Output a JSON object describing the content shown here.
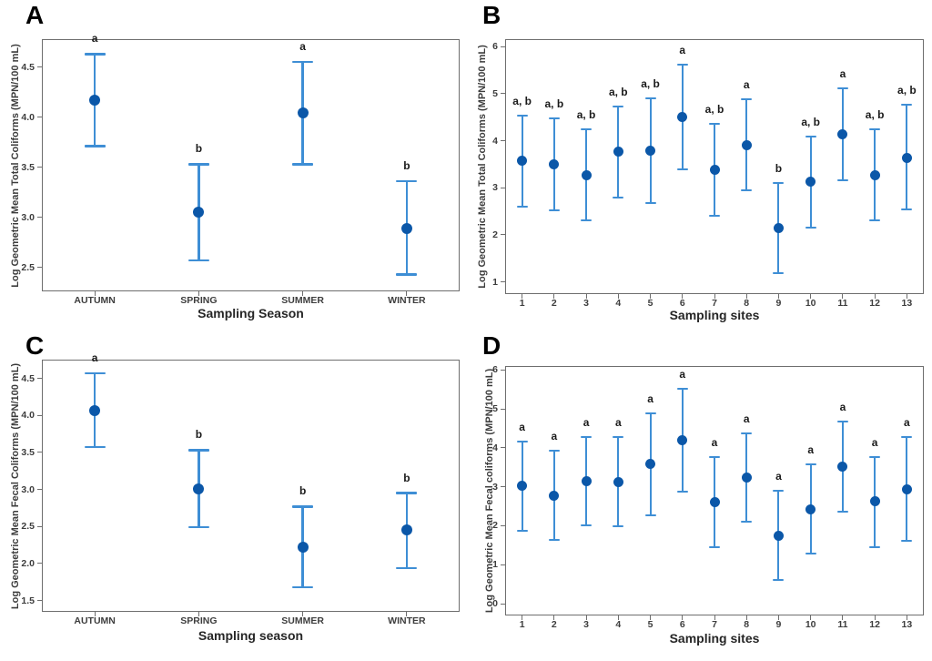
{
  "figure": {
    "description": "Four-panel interval plot figure with mean markers, 95% interval error bars and significance letters",
    "panel_letters": [
      "A",
      "B",
      "C",
      "D"
    ]
  },
  "colors": {
    "marker": "#0b57a8",
    "error_bar": "#3e8ed5",
    "frame": "#6e6e6e",
    "tick_text": "#3d3d3d",
    "axis_title_text": "#262626",
    "sig_letter_text": "#1a1a1a",
    "panel_letter_text": "#000000",
    "background": "#ffffff"
  },
  "chart_data": [
    {
      "panel": "A",
      "type": "interval",
      "ylabel": "Log Geometric Mean Total Coliforms (MPN/100 mL)",
      "xlabel": "Sampling Season",
      "ylim": [
        2.27,
        4.77
      ],
      "yticks": [
        "4.5",
        "4.0",
        "3.5",
        "3.0",
        "2.5"
      ],
      "grid": false,
      "legend": false,
      "categories": [
        "AUTUMN",
        "SPRING",
        "SUMMER",
        "WINTER"
      ],
      "points": [
        {
          "category": "AUTUMN",
          "mean": 4.17,
          "lower": 3.71,
          "upper": 4.63,
          "letter": "a"
        },
        {
          "category": "SPRING",
          "mean": 3.05,
          "lower": 2.57,
          "upper": 3.53,
          "letter": "b"
        },
        {
          "category": "SUMMER",
          "mean": 4.04,
          "lower": 3.53,
          "upper": 4.55,
          "letter": "a"
        },
        {
          "category": "WINTER",
          "mean": 2.89,
          "lower": 2.43,
          "upper": 3.36,
          "letter": "b"
        }
      ]
    },
    {
      "panel": "B",
      "type": "interval",
      "ylabel": "Log Geometric Mean Total Coliforms (MPN/100 mL)",
      "xlabel": "Sampling sites",
      "ylim": [
        0.76,
        6.14
      ],
      "yticks": [
        "6",
        "5",
        "4",
        "3",
        "2",
        "1"
      ],
      "grid": false,
      "legend": false,
      "categories": [
        "1",
        "2",
        "3",
        "4",
        "5",
        "6",
        "7",
        "8",
        "9",
        "10",
        "11",
        "12",
        "13"
      ],
      "points": [
        {
          "category": "1",
          "mean": 3.58,
          "lower": 2.6,
          "upper": 4.54,
          "letter": "a, b"
        },
        {
          "category": "2",
          "mean": 3.49,
          "lower": 2.53,
          "upper": 4.47,
          "letter": "a, b"
        },
        {
          "category": "3",
          "mean": 3.27,
          "lower": 2.31,
          "upper": 4.25,
          "letter": "a, b"
        },
        {
          "category": "4",
          "mean": 3.77,
          "lower": 2.79,
          "upper": 4.73,
          "letter": "a, b"
        },
        {
          "category": "5",
          "mean": 3.79,
          "lower": 2.67,
          "upper": 4.9,
          "letter": "a, b"
        },
        {
          "category": "6",
          "mean": 4.51,
          "lower": 3.39,
          "upper": 5.62,
          "letter": "a"
        },
        {
          "category": "7",
          "mean": 3.39,
          "lower": 2.41,
          "upper": 4.35,
          "letter": "a, b"
        },
        {
          "category": "8",
          "mean": 3.91,
          "lower": 2.95,
          "upper": 4.89,
          "letter": "a"
        },
        {
          "category": "9",
          "mean": 2.14,
          "lower": 1.18,
          "upper": 3.11,
          "letter": "b"
        },
        {
          "category": "10",
          "mean": 3.13,
          "lower": 2.16,
          "upper": 4.09,
          "letter": "a, b"
        },
        {
          "category": "11",
          "mean": 4.13,
          "lower": 3.16,
          "upper": 5.11,
          "letter": "a"
        },
        {
          "category": "12",
          "mean": 3.27,
          "lower": 2.31,
          "upper": 4.25,
          "letter": "a, b"
        },
        {
          "category": "13",
          "mean": 3.64,
          "lower": 2.54,
          "upper": 4.77,
          "letter": "a, b"
        }
      ]
    },
    {
      "panel": "C",
      "type": "interval",
      "ylabel": "Log Geometric Mean Fecal Coliforms (MPN/100 mL)",
      "xlabel": "Sampling season",
      "ylim": [
        1.36,
        4.74
      ],
      "yticks": [
        "4.5",
        "4.0",
        "3.5",
        "3.0",
        "2.5",
        "2.0",
        "1.5"
      ],
      "grid": false,
      "legend": false,
      "categories": [
        "AUTUMN",
        "SPRING",
        "SUMMER",
        "WINTER"
      ],
      "points": [
        {
          "category": "AUTUMN",
          "mean": 4.06,
          "lower": 3.57,
          "upper": 4.57,
          "letter": "a"
        },
        {
          "category": "SPRING",
          "mean": 3.01,
          "lower": 2.49,
          "upper": 3.53,
          "letter": "b"
        },
        {
          "category": "SUMMER",
          "mean": 2.22,
          "lower": 1.68,
          "upper": 2.77,
          "letter": "b"
        },
        {
          "category": "WINTER",
          "mean": 2.45,
          "lower": 1.94,
          "upper": 2.95,
          "letter": "b"
        }
      ]
    },
    {
      "panel": "D",
      "type": "interval",
      "ylabel": "Log Geometric Mean Fecal coliforms (MPN/100 mL)",
      "xlabel": "Sampling sites",
      "ylim": [
        -0.28,
        6.08
      ],
      "yticks": [
        "6",
        "5",
        "4",
        "3",
        "2",
        "1",
        "0"
      ],
      "grid": false,
      "legend": false,
      "categories": [
        "1",
        "2",
        "3",
        "4",
        "5",
        "6",
        "7",
        "8",
        "9",
        "10",
        "11",
        "12",
        "13"
      ],
      "points": [
        {
          "category": "1",
          "mean": 3.03,
          "lower": 1.88,
          "upper": 4.17,
          "letter": "a"
        },
        {
          "category": "2",
          "mean": 2.77,
          "lower": 1.63,
          "upper": 3.92,
          "letter": "a"
        },
        {
          "category": "3",
          "mean": 3.14,
          "lower": 2.01,
          "upper": 4.29,
          "letter": "a"
        },
        {
          "category": "4",
          "mean": 3.13,
          "lower": 1.99,
          "upper": 4.28,
          "letter": "a"
        },
        {
          "category": "5",
          "mean": 3.58,
          "lower": 2.27,
          "upper": 4.88,
          "letter": "a"
        },
        {
          "category": "6",
          "mean": 4.2,
          "lower": 2.87,
          "upper": 5.51,
          "letter": "a"
        },
        {
          "category": "7",
          "mean": 2.61,
          "lower": 1.46,
          "upper": 3.76,
          "letter": "a"
        },
        {
          "category": "8",
          "mean": 3.23,
          "lower": 2.1,
          "upper": 4.38,
          "letter": "a"
        },
        {
          "category": "9",
          "mean": 1.75,
          "lower": 0.61,
          "upper": 2.91,
          "letter": "a"
        },
        {
          "category": "10",
          "mean": 2.43,
          "lower": 1.28,
          "upper": 3.58,
          "letter": "a"
        },
        {
          "category": "11",
          "mean": 3.52,
          "lower": 2.37,
          "upper": 4.67,
          "letter": "a"
        },
        {
          "category": "12",
          "mean": 2.62,
          "lower": 1.46,
          "upper": 3.77,
          "letter": "a"
        },
        {
          "category": "13",
          "mean": 2.94,
          "lower": 1.62,
          "upper": 4.27,
          "letter": "a"
        }
      ]
    }
  ]
}
